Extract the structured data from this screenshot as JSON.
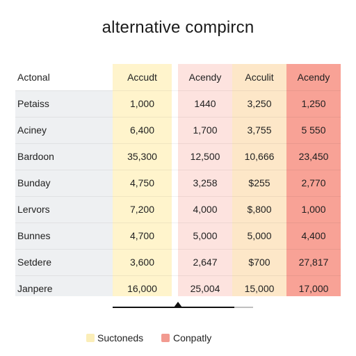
{
  "chart_data": {
    "type": "table",
    "title": "alternative compircn",
    "row_header_label": "Actonal",
    "columns": [
      "Accudt",
      "Acendy",
      "Acculit",
      "Acendy"
    ],
    "rows": [
      {
        "label": "Petaiss",
        "values": [
          "1,000",
          "1440",
          "3,250",
          "1,250"
        ]
      },
      {
        "label": "Aciney",
        "values": [
          "6,400",
          "1,700",
          "3,755",
          "5 550"
        ]
      },
      {
        "label": "Bardoon",
        "values": [
          "35,300",
          "12,500",
          "10,666",
          "23,450"
        ]
      },
      {
        "label": "Bunday",
        "values": [
          "4,750",
          "3,258",
          "$255",
          "2,770"
        ]
      },
      {
        "label": "Lervors",
        "values": [
          "7,200",
          "4,000",
          "$,800",
          "1,000"
        ]
      },
      {
        "label": "Bunnes",
        "values": [
          "4,700",
          "5,000",
          "5,000",
          "4,400"
        ]
      },
      {
        "label": "Setdere",
        "values": [
          "3,600",
          "2,647",
          "$700",
          "27,817"
        ]
      },
      {
        "label": "Janpere",
        "values": [
          "16,000",
          "25,004",
          "15,000",
          "17,000"
        ]
      }
    ],
    "column_colors": [
      "#fff4cc",
      "#fde3df",
      "#fde7c8",
      "#f8a296"
    ],
    "legend": [
      {
        "label": "Suctoneds",
        "color": "#fbeeb8"
      },
      {
        "label": "Conpatly",
        "color": "#f29a90"
      }
    ]
  }
}
